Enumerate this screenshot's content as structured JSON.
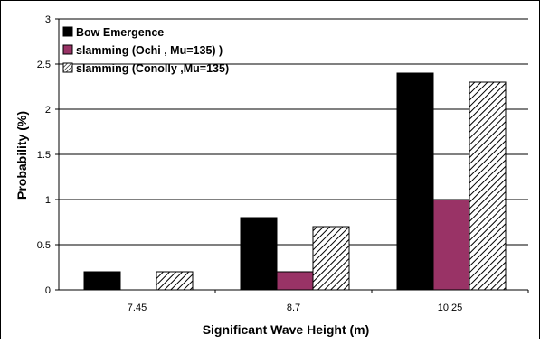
{
  "chart_data": {
    "type": "bar",
    "title": "",
    "xlabel": "Significant Wave Height (m)",
    "ylabel": "Probability (%)",
    "categories": [
      "7.45",
      "8.7",
      "10.25"
    ],
    "ylim": [
      0,
      3
    ],
    "yticks": [
      "0",
      "0.5",
      "1",
      "1.5",
      "2",
      "2.5",
      "3"
    ],
    "grid": true,
    "legend_position": "top-left",
    "series": [
      {
        "name": "Bow Emergence",
        "values": [
          0.2,
          0.8,
          2.4
        ],
        "color": "#000000",
        "pattern": "solid"
      },
      {
        "name": "slamming (Ochi   , Mu=135) )",
        "values": [
          0.0,
          0.2,
          1.0
        ],
        "color": "#993366",
        "pattern": "solid"
      },
      {
        "name": "slamming (Conolly ,Mu=135)",
        "values": [
          0.2,
          0.7,
          2.3
        ],
        "color": "#000000",
        "pattern": "hatch"
      }
    ]
  }
}
